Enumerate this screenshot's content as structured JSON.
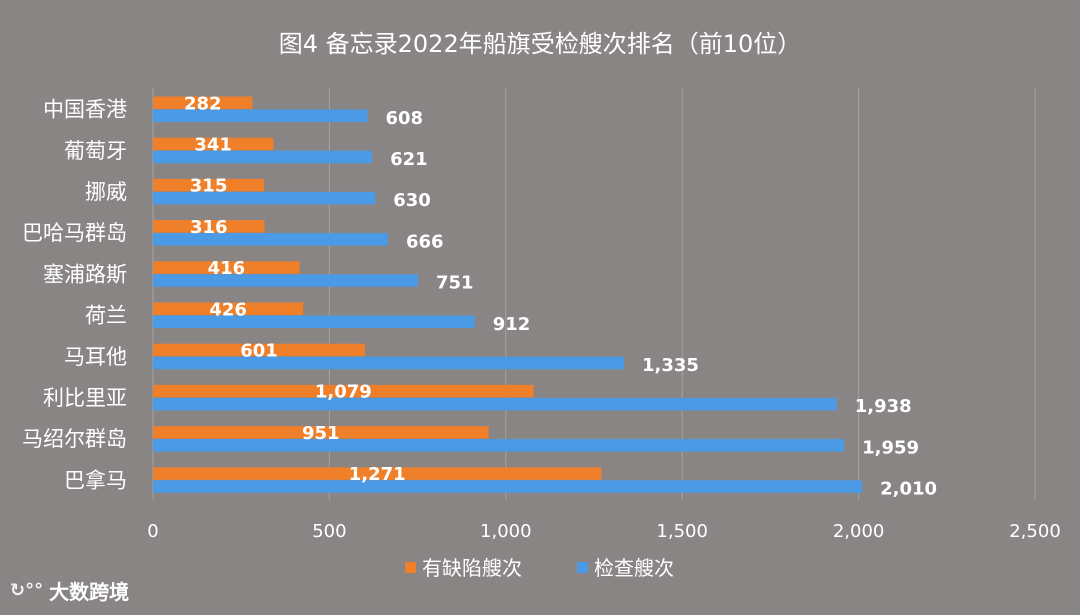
{
  "chart_data": {
    "type": "bar",
    "orientation": "horizontal",
    "title": "图4   备忘录2022年船旗受检艘次排名（前10位）",
    "categories": [
      "中国香港",
      "葡萄牙",
      "挪威",
      "巴哈马群岛",
      "塞浦路斯",
      "荷兰",
      "马耳他",
      "利比里亚",
      "马绍尔群岛",
      "巴拿马"
    ],
    "series": [
      {
        "name": "有缺陷艘次",
        "color": "#f07f2a",
        "values": [
          282,
          341,
          315,
          316,
          416,
          426,
          601,
          1079,
          951,
          1271
        ],
        "labels": [
          "282",
          "341",
          "315",
          "316",
          "416",
          "426",
          "601",
          "1,079",
          "951",
          "1,271"
        ]
      },
      {
        "name": "检查艘次",
        "color": "#4b9ae6",
        "values": [
          608,
          621,
          630,
          666,
          751,
          912,
          1335,
          1938,
          1959,
          2010
        ],
        "labels": [
          "608",
          "621",
          "630",
          "666",
          "751",
          "912",
          "1,335",
          "1,938",
          "1,959",
          "2,010"
        ]
      }
    ],
    "xlim": [
      0,
      2500
    ],
    "xticks": [
      0,
      500,
      1000,
      1500,
      2000,
      2500
    ],
    "xtick_labels": [
      "0",
      "500",
      "1,000",
      "1,500",
      "2,000",
      "2,500"
    ],
    "grid": true,
    "legend_position": "bottom"
  },
  "watermark": {
    "text": "大数跨境"
  }
}
